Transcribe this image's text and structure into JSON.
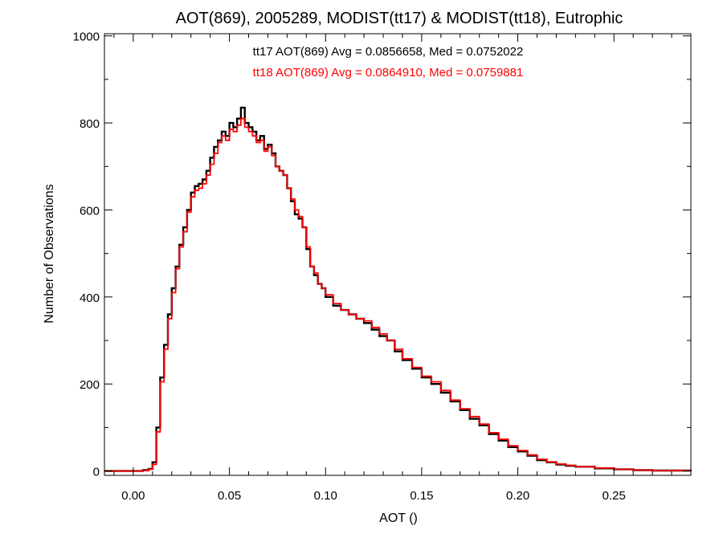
{
  "chart_data": {
    "type": "line",
    "title": "AOT(869), 2005289, MODIST(tt17) & MODIST(tt18), Eutrophic",
    "xlabel": "AOT ()",
    "ylabel": "Number of Observations",
    "xlim": [
      -0.015,
      0.29
    ],
    "ylim": [
      -10,
      1005
    ],
    "x_ticks": [
      0.0,
      0.05,
      0.1,
      0.15,
      0.2,
      0.25
    ],
    "x_tick_labels": [
      "0.00",
      "0.05",
      "0.10",
      "0.15",
      "0.20",
      "0.25"
    ],
    "y_ticks": [
      0,
      200,
      400,
      600,
      800,
      1000
    ],
    "y_tick_labels": [
      "0",
      "200",
      "400",
      "600",
      "800",
      "1000"
    ],
    "grid": false,
    "annotations": [
      {
        "text": "tt17 AOT(869) Avg = 0.0856658, Med = 0.0752022",
        "color": "#000000"
      },
      {
        "text": "tt18 AOT(869) Avg = 0.0864910, Med = 0.0759881",
        "color": "#ff0000"
      }
    ],
    "series": [
      {
        "color": "#000000",
        "x": [
          -0.015,
          0.0,
          0.005,
          0.008,
          0.01,
          0.012,
          0.014,
          0.016,
          0.018,
          0.02,
          0.022,
          0.024,
          0.026,
          0.028,
          0.03,
          0.032,
          0.034,
          0.036,
          0.038,
          0.04,
          0.042,
          0.044,
          0.046,
          0.048,
          0.05,
          0.052,
          0.054,
          0.056,
          0.058,
          0.06,
          0.062,
          0.064,
          0.066,
          0.068,
          0.07,
          0.072,
          0.074,
          0.076,
          0.078,
          0.08,
          0.082,
          0.084,
          0.086,
          0.088,
          0.09,
          0.092,
          0.094,
          0.096,
          0.098,
          0.1,
          0.104,
          0.108,
          0.112,
          0.116,
          0.12,
          0.124,
          0.128,
          0.132,
          0.136,
          0.14,
          0.145,
          0.15,
          0.155,
          0.16,
          0.165,
          0.17,
          0.175,
          0.18,
          0.185,
          0.19,
          0.195,
          0.2,
          0.205,
          0.21,
          0.215,
          0.22,
          0.225,
          0.23,
          0.24,
          0.25,
          0.26,
          0.27,
          0.29
        ],
        "values": [
          0,
          0,
          2,
          5,
          20,
          100,
          215,
          290,
          360,
          420,
          470,
          520,
          560,
          600,
          640,
          655,
          660,
          670,
          690,
          720,
          745,
          760,
          780,
          770,
          800,
          790,
          810,
          835,
          800,
          790,
          780,
          760,
          770,
          740,
          750,
          730,
          700,
          690,
          680,
          650,
          620,
          590,
          580,
          560,
          510,
          470,
          450,
          430,
          420,
          400,
          380,
          370,
          360,
          350,
          340,
          325,
          310,
          300,
          275,
          255,
          235,
          215,
          200,
          180,
          160,
          140,
          120,
          105,
          85,
          70,
          55,
          45,
          35,
          25,
          20,
          15,
          12,
          10,
          6,
          4,
          2,
          1,
          0
        ]
      },
      {
        "color": "#ff0000",
        "x": [
          -0.015,
          0.0,
          0.005,
          0.008,
          0.01,
          0.012,
          0.014,
          0.016,
          0.018,
          0.02,
          0.022,
          0.024,
          0.026,
          0.028,
          0.03,
          0.032,
          0.034,
          0.036,
          0.038,
          0.04,
          0.042,
          0.044,
          0.046,
          0.048,
          0.05,
          0.052,
          0.054,
          0.056,
          0.058,
          0.06,
          0.062,
          0.064,
          0.066,
          0.068,
          0.07,
          0.072,
          0.074,
          0.076,
          0.078,
          0.08,
          0.082,
          0.084,
          0.086,
          0.088,
          0.09,
          0.092,
          0.094,
          0.096,
          0.098,
          0.1,
          0.104,
          0.108,
          0.112,
          0.116,
          0.12,
          0.124,
          0.128,
          0.132,
          0.136,
          0.14,
          0.145,
          0.15,
          0.155,
          0.16,
          0.165,
          0.17,
          0.175,
          0.18,
          0.185,
          0.19,
          0.195,
          0.2,
          0.205,
          0.21,
          0.215,
          0.22,
          0.225,
          0.23,
          0.24,
          0.25,
          0.26,
          0.27,
          0.29
        ],
        "values": [
          0,
          0,
          1,
          4,
          15,
          90,
          205,
          280,
          350,
          410,
          465,
          515,
          550,
          595,
          630,
          645,
          650,
          660,
          680,
          705,
          730,
          755,
          770,
          760,
          785,
          780,
          795,
          810,
          790,
          780,
          770,
          755,
          760,
          735,
          745,
          725,
          700,
          690,
          680,
          650,
          625,
          600,
          585,
          560,
          515,
          470,
          455,
          430,
          420,
          405,
          385,
          370,
          360,
          350,
          345,
          330,
          315,
          300,
          280,
          258,
          238,
          218,
          205,
          185,
          163,
          143,
          125,
          108,
          88,
          73,
          58,
          47,
          37,
          27,
          21,
          16,
          13,
          10,
          7,
          4,
          2,
          1,
          0
        ]
      }
    ]
  }
}
